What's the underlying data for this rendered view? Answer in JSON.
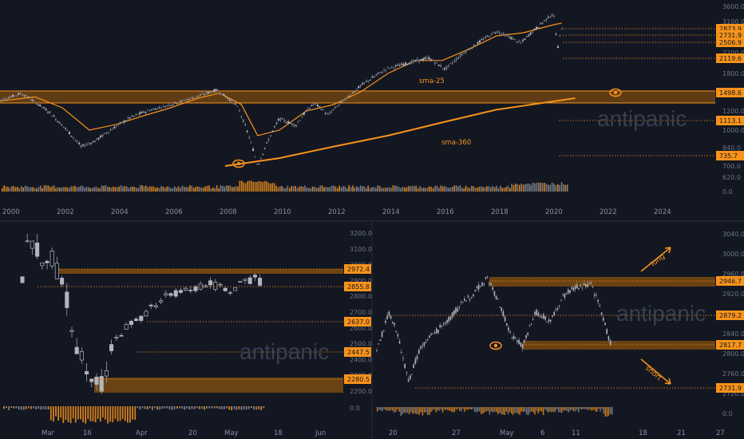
{
  "colors": {
    "bg": "#131722",
    "accent": "#f7931a",
    "candle": "#b2b5be",
    "grid": "#1e2230",
    "wick": "#9ea2ad"
  },
  "watermark": "antipanic",
  "chart_data": [
    {
      "type": "line",
      "name": "top-long-term",
      "x_ticks": [
        "2000",
        "2002",
        "2004",
        "2006",
        "2008",
        "2010",
        "2012",
        "2014",
        "2016",
        "2018",
        "2020",
        "2022",
        "2024"
      ],
      "y_ticks": [
        "3600.0",
        "3100.0",
        "2600.0",
        "2200.0",
        "1800.0",
        "1500.0",
        "1200.0",
        "1000.0",
        "840.0",
        "700.0",
        "620.0",
        "0.0"
      ],
      "price_tags": [
        "2873.9",
        "2731.9",
        "2506.9",
        "2119.6",
        "1498.6",
        "1113.1",
        "735.7"
      ],
      "sma_labels": [
        "sma-25",
        "sma-360"
      ],
      "zone_level": "1498.6",
      "x_range": [
        1999.5,
        2025.5
      ],
      "series": [
        {
          "name": "sma-25",
          "x": [
            1999.6,
            2001,
            2002,
            2003,
            2004,
            2005,
            2006,
            2007,
            2007.8,
            2008.6,
            2009.2,
            2010,
            2011,
            2012,
            2013,
            2014,
            2015,
            2016,
            2017,
            2018,
            2019,
            2020.1,
            2020.4
          ],
          "y": [
            1350,
            1420,
            1250,
            1000,
            1060,
            1150,
            1250,
            1400,
            1480,
            1300,
            950,
            1000,
            1200,
            1300,
            1500,
            1800,
            2050,
            2050,
            2300,
            2650,
            2750,
            3000,
            3050
          ]
        },
        {
          "name": "sma-360",
          "x": [
            2008,
            2010,
            2012,
            2014,
            2016,
            2018,
            2020.9
          ],
          "y": [
            700,
            760,
            850,
            950,
            1080,
            1220,
            1400
          ]
        }
      ]
    },
    {
      "type": "bar",
      "name": "bottom-left-daily",
      "x_ticks": [
        "Mar",
        "16",
        "Apr",
        "20",
        "May",
        "18",
        "Jun"
      ],
      "y_ticks": [
        "3200.0",
        "3100.0",
        "3000.0",
        "2900.0",
        "2800.0",
        "2700.0",
        "2600.0",
        "2500.0",
        "2400.0",
        "2300.0",
        "2200.0",
        "0.0"
      ],
      "price_tags": [
        "2972.4",
        "2855.8",
        "2637.0",
        "2447.5",
        "2280.5"
      ]
    },
    {
      "type": "bar",
      "name": "bottom-right-intraday",
      "x_ticks": [
        "20",
        "27",
        "May",
        "6",
        "11",
        "18",
        "21",
        "27"
      ],
      "y_ticks": [
        "3040.0",
        "3000.0",
        "2960.0",
        "2920.0",
        "2880.0",
        "2840.0",
        "2800.0",
        "2760.0",
        "2720.0",
        "0.0"
      ],
      "price_tags": [
        "2946.7",
        "2879.2",
        "2817.7",
        "2731.9"
      ],
      "annotations": [
        "long",
        "short"
      ]
    }
  ]
}
